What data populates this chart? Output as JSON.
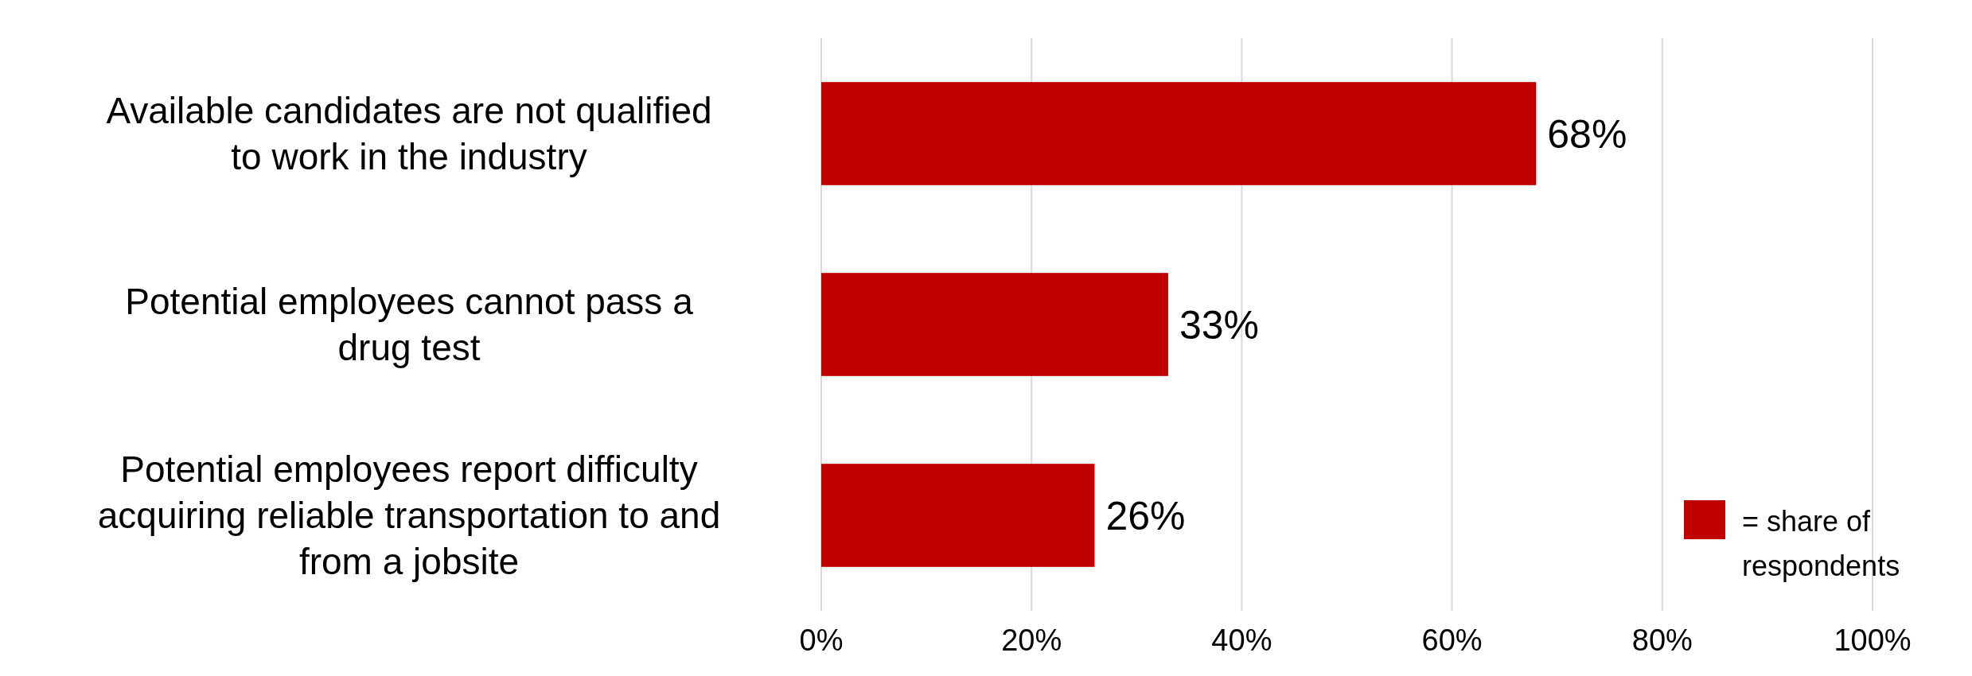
{
  "chart_data": {
    "type": "bar",
    "orientation": "horizontal",
    "categories": [
      "Available candidates are not qualified to work in the industry",
      "Potential employees cannot pass a drug test",
      "Potential employees report difficulty acquiring reliable transportation to and from a jobsite"
    ],
    "series": [
      {
        "name": "= share of respondents",
        "color": "#c00000",
        "values": [
          68,
          33,
          26
        ],
        "value_labels": [
          "68%",
          "33%",
          "26%"
        ]
      }
    ],
    "xlim": [
      0,
      100
    ],
    "xticks": [
      {
        "value": 0,
        "label": "0%"
      },
      {
        "value": 20,
        "label": "20%"
      },
      {
        "value": 40,
        "label": "40%"
      },
      {
        "value": 60,
        "label": "60%"
      },
      {
        "value": 80,
        "label": "80%"
      },
      {
        "value": 100,
        "label": "100%"
      }
    ],
    "grid": "x",
    "legend": "bottom right"
  }
}
